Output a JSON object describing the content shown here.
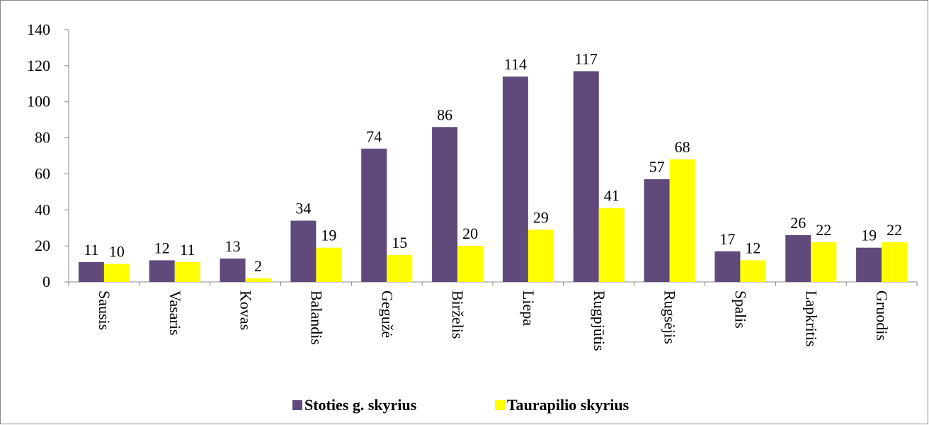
{
  "chart_data": {
    "type": "bar",
    "categories": [
      "Sausis",
      "Vasaris",
      "Kovas",
      "Balandis",
      "Gegužė",
      "Birželis",
      "Liepa",
      "Rugpjūtis",
      "Rugsėjis",
      "Spalis",
      "Lapkritis",
      "Gruodis"
    ],
    "series": [
      {
        "name": "Stoties g. skyrius",
        "color": "#604a7b",
        "values": [
          11,
          12,
          13,
          34,
          74,
          86,
          114,
          117,
          57,
          17,
          26,
          19
        ]
      },
      {
        "name": "Taurapilio skyrius",
        "color": "#ffff00",
        "values": [
          10,
          11,
          2,
          19,
          15,
          20,
          29,
          41,
          68,
          12,
          22,
          22
        ]
      }
    ],
    "ylim": [
      0,
      140
    ],
    "yticks": [
      0,
      20,
      40,
      60,
      80,
      100,
      120,
      140
    ],
    "grid": false,
    "legend": "bottom"
  }
}
